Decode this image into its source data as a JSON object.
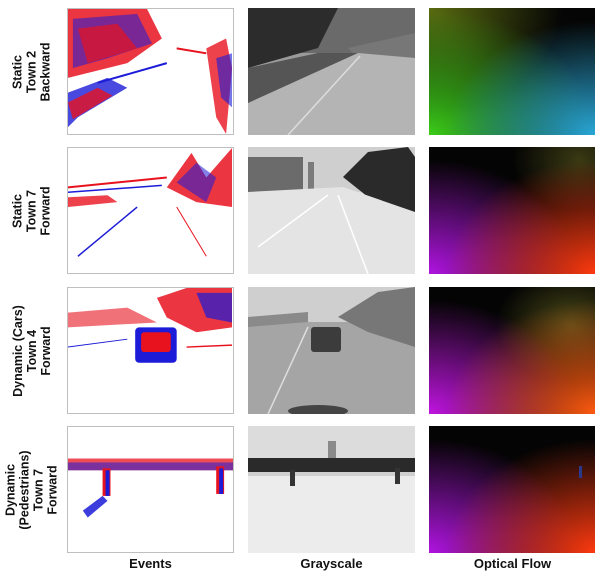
{
  "rows": [
    {
      "lines": [
        "Static",
        "Town 2",
        "Backward"
      ]
    },
    {
      "lines": [
        "Static",
        "Town 7",
        "Forward"
      ]
    },
    {
      "lines": [
        "Dynamic (Cars)",
        "Town 4",
        "Forward"
      ]
    },
    {
      "lines": [
        "Dynamic",
        "(Pedestrians)",
        "Town 7",
        "Forward"
      ]
    }
  ],
  "columns": [
    "Events",
    "Grayscale",
    "Optical Flow"
  ],
  "colors": {
    "event_positive": "#e8121e",
    "event_negative": "#1b1bd8"
  }
}
